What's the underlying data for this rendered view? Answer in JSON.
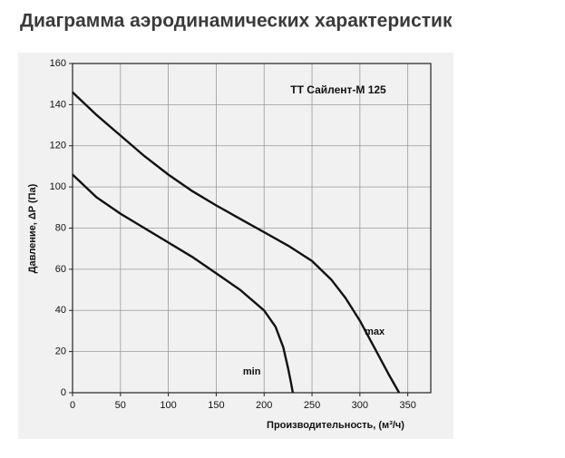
{
  "heading": "Диаграмма аэродинамических характеристик",
  "chart_data": {
    "type": "line",
    "annotation": "ТТ Сайлент-М 125",
    "x_label": "Производительность, (м³/ч)",
    "y_label": "Давление, ΔP (Па)",
    "xlim": [
      0,
      374
    ],
    "ylim": [
      0,
      160
    ],
    "xticks": [
      0,
      50,
      100,
      150,
      200,
      250,
      300,
      350
    ],
    "yticks": [
      0,
      20,
      40,
      60,
      80,
      100,
      120,
      140,
      160
    ],
    "grid": true,
    "series": [
      {
        "name": "max",
        "color": "#111111",
        "x": [
          0,
          25,
          50,
          75,
          100,
          125,
          150,
          175,
          200,
          225,
          250,
          270,
          285,
          300,
          315,
          330,
          341
        ],
        "values": [
          146,
          135,
          125,
          115,
          106,
          98,
          91,
          84.5,
          78,
          71.5,
          64,
          55,
          46,
          35,
          22,
          9,
          0
        ]
      },
      {
        "name": "min",
        "color": "#111111",
        "x": [
          0,
          25,
          50,
          75,
          100,
          125,
          150,
          175,
          200,
          212,
          220,
          225,
          228,
          230
        ],
        "values": [
          106,
          95,
          87,
          80,
          73,
          66,
          58,
          50,
          40,
          32,
          22,
          12,
          5,
          0
        ]
      }
    ]
  }
}
